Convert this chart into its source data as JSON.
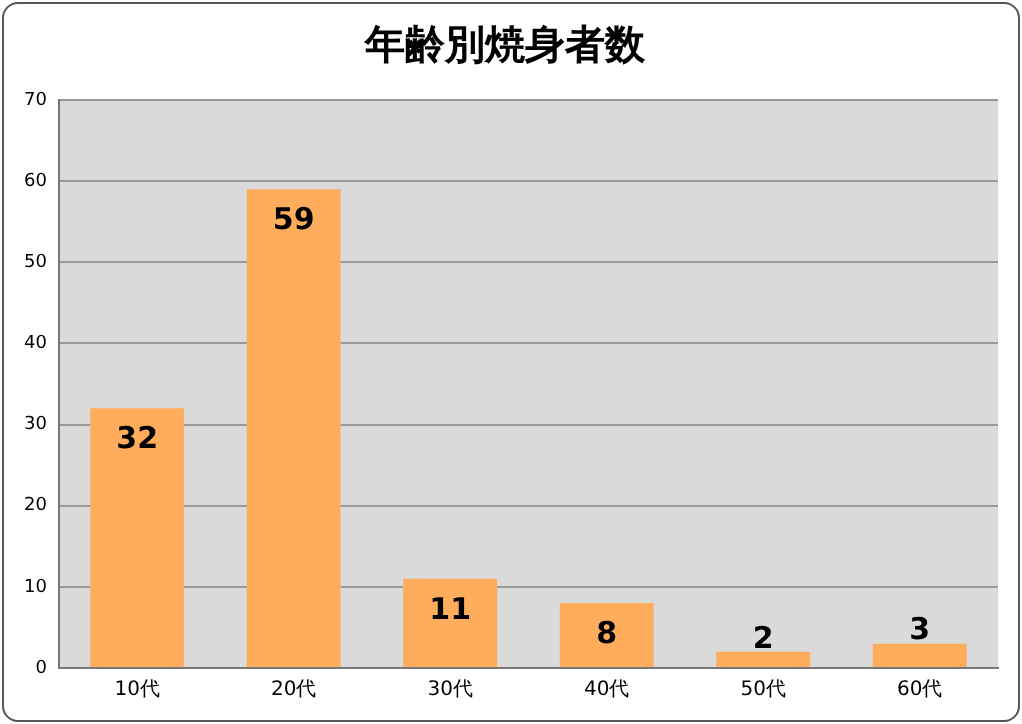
{
  "chart_data": {
    "type": "bar",
    "title": "年齢別焼身者数",
    "categories": [
      "10代",
      "20代",
      "30代",
      "40代",
      "50代",
      "60代"
    ],
    "values": [
      32,
      59,
      11,
      8,
      2,
      3
    ],
    "color": "#ffad5c",
    "ylim": [
      0,
      70
    ],
    "yticks": [
      0,
      10,
      20,
      30,
      40,
      50,
      60,
      70
    ],
    "grid": "y",
    "data_labels": true,
    "legend": false
  }
}
